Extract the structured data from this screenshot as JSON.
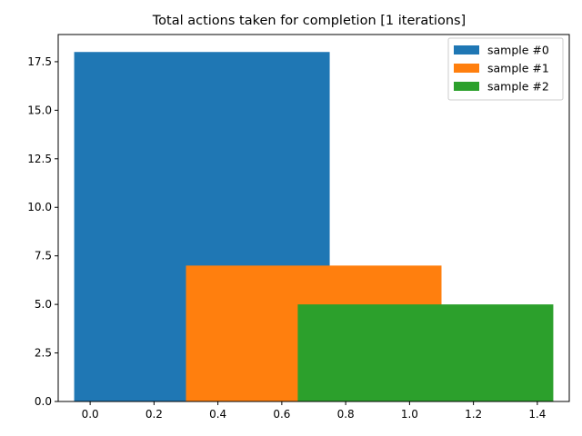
{
  "chart_data": {
    "type": "bar",
    "title": "Total actions taken for completion [1 iterations]",
    "xlabel": "",
    "ylabel": "",
    "xlim": [
      -0.1,
      1.5
    ],
    "ylim": [
      0,
      18.9
    ],
    "grid": false,
    "legend_position": "top-right",
    "xticks": [
      "0.0",
      "0.2",
      "0.4",
      "0.6",
      "0.8",
      "1.0",
      "1.2",
      "1.4"
    ],
    "yticks": [
      "0.0",
      "2.5",
      "5.0",
      "7.5",
      "10.0",
      "12.5",
      "15.0",
      "17.5"
    ],
    "series": [
      {
        "name": "sample #0",
        "x_start": -0.05,
        "x_end": 0.75,
        "value": 18,
        "color": "#1f77b4"
      },
      {
        "name": "sample #1",
        "x_start": 0.3,
        "x_end": 1.1,
        "value": 7,
        "color": "#ff7f0e"
      },
      {
        "name": "sample #2",
        "x_start": 0.65,
        "x_end": 1.45,
        "value": 5,
        "color": "#2ca02c"
      }
    ]
  }
}
